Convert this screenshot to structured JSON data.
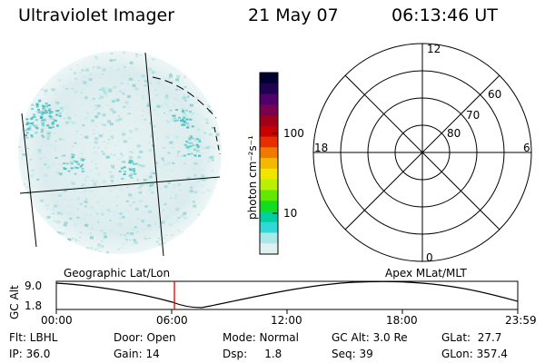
{
  "header": {
    "instrument": "Ultraviolet Imager",
    "date": "21 May 07",
    "time": "06:13:46 UT"
  },
  "colorbar": {
    "unit_label": "photon cm⁻²s⁻¹",
    "ticks": [
      "100",
      "10"
    ],
    "colors": [
      "#000030",
      "#200050",
      "#50006a",
      "#7a0050",
      "#a00018",
      "#c80000",
      "#e43000",
      "#f07a00",
      "#f4b800",
      "#f0e400",
      "#b8f000",
      "#60e800",
      "#10dc20",
      "#00d0a0",
      "#30d8d8",
      "#a8e8e8",
      "#e0f0f0"
    ]
  },
  "polar_plot": {
    "mlt_labels": {
      "top": "12",
      "right": "6",
      "bottom": "0",
      "left": "18"
    },
    "lat_labels": [
      "60",
      "70",
      "80"
    ]
  },
  "timeline": {
    "left_header": "Geographic Lat/Lon",
    "right_header": "Apex MLat/MLT",
    "axis_title": "GC Alt",
    "y_ticks": [
      "9.0",
      "1.8"
    ],
    "x_ticks": [
      "00:00",
      "06:00",
      "12:00",
      "18:00",
      "23:59"
    ],
    "marker_color": "#e00000"
  },
  "info": {
    "flt": "Flt: LBHL",
    "ip": "IP: 36.0",
    "door": "Door: Open",
    "gain": "Gain: 14",
    "mode": "Mode: Normal",
    "dsp": "Dsp:     1.8",
    "gcalt": "GC Alt: 3.0 Re",
    "seq": "Seq: 39",
    "glat": "GLat:  27.7",
    "glon": "GLon: 357.4"
  }
}
